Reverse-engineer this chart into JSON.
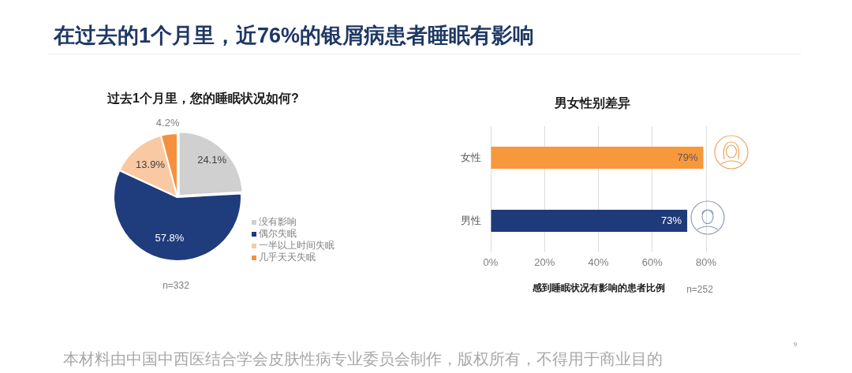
{
  "chart_data": [
    {
      "type": "pie",
      "title": "在过去的1个月里，近76%的银屑病患者睡眠有影响",
      "subtitle": "过去1个月里，您的睡眠状况如何?",
      "categories": [
        "没有影响",
        "偶尔失眠",
        "一半以上时间失眠",
        "几乎天天失眠"
      ],
      "values": [
        24.1,
        57.8,
        13.9,
        4.2
      ],
      "colors": [
        "#d0d0d0",
        "#1f3c7c",
        "#f9c9a3",
        "#f5913e"
      ],
      "value_labels": [
        "24.1%",
        "57.8%",
        "13.9%",
        "4.2%"
      ],
      "legend": "bottom right",
      "annotations": [
        "n=332",
        "本材料由中国中西医结合学会皮肤性病专业委员会制作，版权所有，不得用于商业目的",
        "9"
      ]
    },
    {
      "type": "bar",
      "orientation": "horizontal",
      "title": "男女性别差异",
      "xlabel": "感到睡眠状况有影响的患者比例",
      "categories": [
        "女性",
        "男性"
      ],
      "values": [
        79,
        73
      ],
      "colors": [
        "#f7983c",
        "#1e3a78"
      ],
      "value_labels": [
        "79%",
        "73%"
      ],
      "xlim": [
        0,
        80
      ],
      "xticks": [
        {
          "value": 0,
          "label": "0%"
        },
        {
          "value": 20,
          "label": "20%"
        },
        {
          "value": 40,
          "label": "40%"
        },
        {
          "value": 60,
          "label": "60%"
        },
        {
          "value": 80,
          "label": "80%"
        }
      ],
      "grid": "x",
      "annotations": [
        "n=252"
      ]
    }
  ]
}
